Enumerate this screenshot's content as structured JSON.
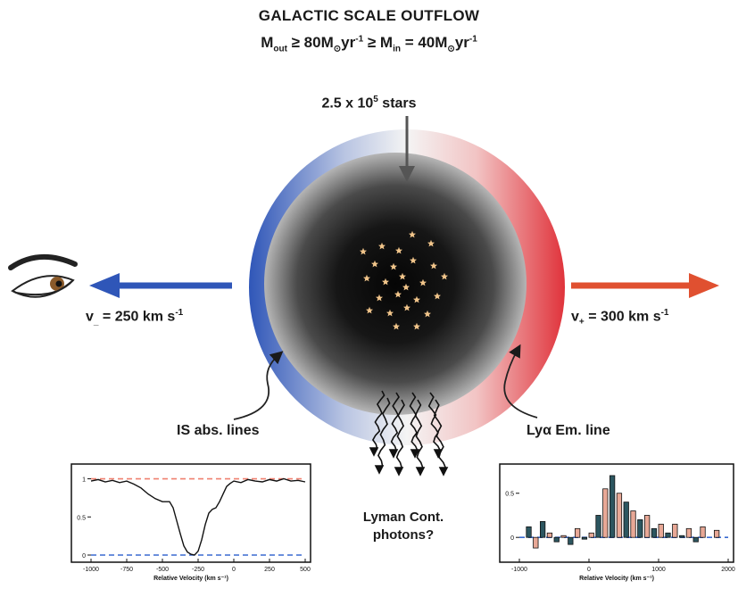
{
  "title": "GALACTIC SCALE OUTFLOW",
  "rates": {
    "m_out": "M",
    "m_out_sub": "out",
    "m_out_rel": " ≥ 80M",
    "sun1": "⊙",
    "yr1": "yr",
    "exp1": "-1",
    "ge": " ≥ M",
    "m_in_sub": "in",
    "m_in_rel": " = 40M",
    "sun2": "⊙",
    "yr2": "yr",
    "exp2": "-1"
  },
  "stars_label": {
    "base": "2.5 x 10",
    "exp": "5",
    "unit": " stars"
  },
  "v_minus": {
    "label": "v",
    "sub": "_",
    "value": " = 250 km s",
    "exp": "-1"
  },
  "v_plus": {
    "label": "v",
    "sub": "+",
    "value": " = 300 km s",
    "exp": "-1"
  },
  "is_abs_label": "IS abs. lines",
  "lya_label": "Lyα Em. line",
  "lyman_label": "Lyman Cont. photons?",
  "colors": {
    "blue_side": "#2f56b8",
    "red_side": "#e0333b",
    "core": "#0b0b0b",
    "star": "#f0c48a",
    "dashed_red": "#f08070",
    "dashed_blue": "#3a6ad0",
    "bar_red": "#e8a896",
    "bar_teal": "#2c5660"
  },
  "icons": [
    "eye-icon",
    "left-arrow-icon",
    "right-arrow-icon",
    "down-arrow-icon",
    "star-icon",
    "photon-arrow-icon"
  ],
  "chart_data": [
    {
      "type": "line",
      "xlabel": "Relative Velocity (km s⁻¹)",
      "ylabel": "",
      "xlim": [
        -1000,
        500
      ],
      "ylim": [
        0,
        1.1
      ],
      "x_ticks": [
        "-1000",
        "-750",
        "-500",
        "-250",
        "0",
        "250",
        "500"
      ],
      "y_ticks": [
        "1",
        "0.5",
        "0"
      ],
      "reference_levels": [
        1.0,
        0.0
      ],
      "series": [
        {
          "x": [
            -1000,
            -950,
            -900,
            -850,
            -800,
            -750,
            -700,
            -650,
            -600,
            -550,
            -500,
            -450,
            -425,
            -400,
            -375,
            -350,
            -325,
            -300,
            -275,
            -250,
            -225,
            -200,
            -175,
            -150,
            -125,
            -100,
            -75,
            -50,
            -25,
            0,
            50,
            100,
            150,
            200,
            250,
            300,
            350,
            400,
            450,
            500
          ],
          "y": [
            0.97,
            0.99,
            0.96,
            0.98,
            0.95,
            0.97,
            0.93,
            0.88,
            0.8,
            0.74,
            0.7,
            0.7,
            0.62,
            0.45,
            0.28,
            0.12,
            0.04,
            0.01,
            0.0,
            0.05,
            0.2,
            0.4,
            0.55,
            0.6,
            0.62,
            0.7,
            0.8,
            0.9,
            0.94,
            0.97,
            0.95,
            0.99,
            0.97,
            0.96,
            0.99,
            0.97,
            1.0,
            0.97,
            0.98,
            0.96
          ]
        }
      ]
    },
    {
      "type": "bar",
      "xlabel": "Relative Velocity (km s⁻¹)",
      "ylabel": "",
      "xlim": [
        -1000,
        2000
      ],
      "ylim": [
        -0.2,
        0.75
      ],
      "x_ticks": [
        "-1000",
        "0",
        "1000",
        "2000"
      ],
      "y_ticks": [
        "0.5",
        "0"
      ],
      "reference_levels": [
        0.0
      ],
      "series": [
        {
          "x": [
            -950,
            -850,
            -750,
            -650,
            -550,
            -450,
            -350,
            -250,
            -150,
            -50,
            50,
            150,
            250,
            350,
            450,
            550,
            650,
            750,
            850,
            950,
            1050,
            1150,
            1250,
            1350,
            1450,
            1550,
            1650,
            1750,
            1850,
            1950
          ],
          "y": [
            0.0,
            0.12,
            -0.12,
            0.18,
            0.05,
            -0.05,
            0.02,
            -0.08,
            0.1,
            -0.02,
            0.05,
            0.25,
            0.55,
            0.7,
            0.5,
            0.4,
            0.3,
            0.2,
            0.25,
            0.1,
            0.15,
            0.05,
            0.15,
            0.02,
            0.1,
            -0.05,
            0.12,
            0.0,
            0.08,
            0.0
          ]
        }
      ]
    }
  ]
}
